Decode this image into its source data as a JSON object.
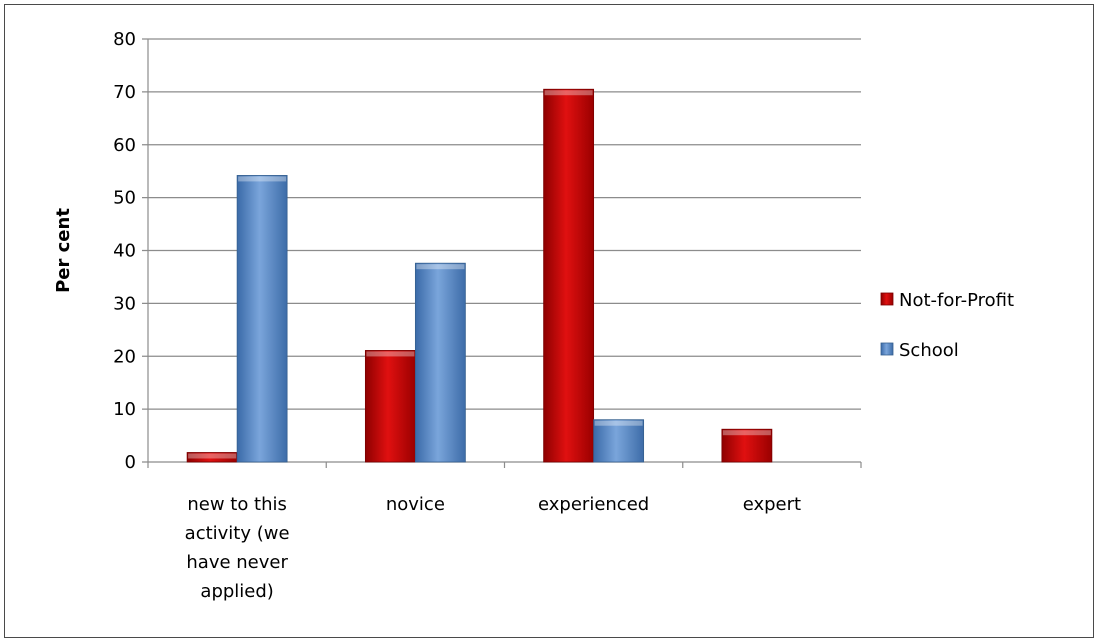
{
  "chart_data": {
    "type": "bar",
    "categories": [
      [
        "new to this",
        "activity (we",
        "have never",
        "applied)"
      ],
      [
        "novice"
      ],
      [
        "experienced"
      ],
      [
        "expert"
      ]
    ],
    "series": [
      {
        "name": "Not-for-Profit",
        "values": [
          1.8,
          21.1,
          70.5,
          6.2
        ],
        "color": "#cc0000"
      },
      {
        "name": "School",
        "values": [
          54.2,
          37.6,
          8.0,
          0
        ],
        "color": "#4f81bd"
      }
    ],
    "ylabel": "Per cent",
    "xlabel": "",
    "title": "",
    "ylim": [
      0,
      80
    ],
    "yticks": [
      0,
      10,
      20,
      30,
      40,
      50,
      60,
      70,
      80
    ],
    "grid": true,
    "legend_position": "right"
  }
}
